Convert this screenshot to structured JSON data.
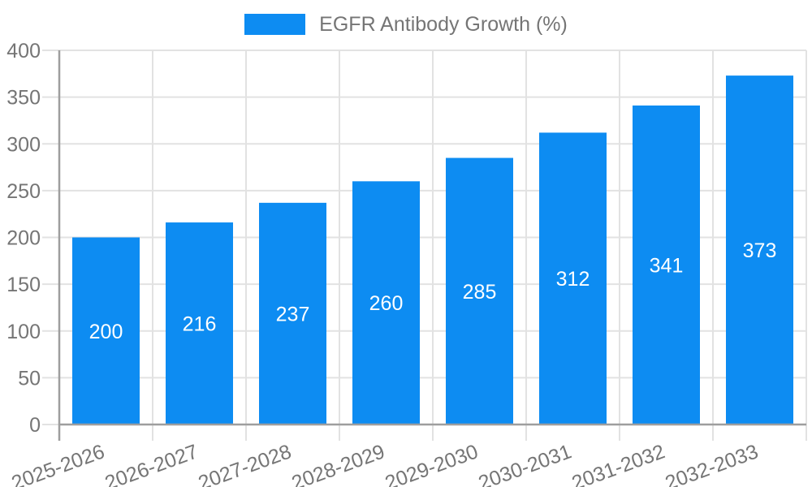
{
  "chart_data": {
    "type": "bar",
    "title": "EGFR Antibody Growth (%)",
    "categories": [
      "2025-2026",
      "2026-2027",
      "2027-2028",
      "2028-2029",
      "2029-2030",
      "2030-2031",
      "2031-2032",
      "2032-2033"
    ],
    "values": [
      200,
      216,
      237,
      260,
      285,
      312,
      341,
      373
    ],
    "xlabel": "",
    "ylabel": "",
    "ylim": [
      0,
      400
    ],
    "ytick_step": 50,
    "grid": true,
    "legend_position": "top-center",
    "bar_color": "#0d8cf2",
    "colors": {
      "grid": "#e2e2e2",
      "axis": "#9e9e9e",
      "tick_text": "#757575",
      "value_label": "#ffffff",
      "title_text": "#757575"
    }
  }
}
